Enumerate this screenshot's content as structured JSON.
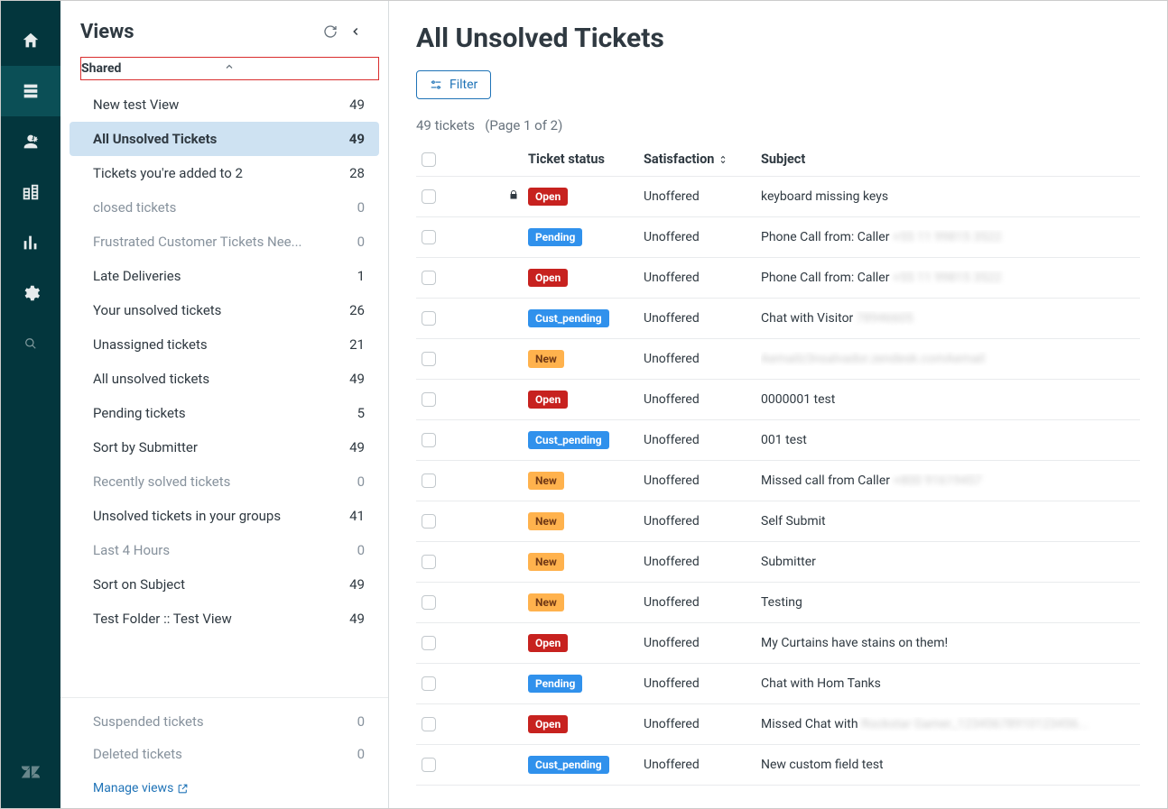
{
  "navrail": {
    "items": [
      {
        "name": "home",
        "active": false
      },
      {
        "name": "views",
        "active": true
      },
      {
        "name": "customers",
        "active": false
      },
      {
        "name": "organizations",
        "active": false
      },
      {
        "name": "reporting",
        "active": false
      },
      {
        "name": "admin",
        "active": false
      },
      {
        "name": "search",
        "active": false
      }
    ]
  },
  "sidebar": {
    "title": "Views",
    "section_label": "Shared",
    "views": [
      {
        "label": "New test View",
        "count": "49",
        "active": false,
        "muted": false
      },
      {
        "label": "All Unsolved Tickets",
        "count": "49",
        "active": true,
        "muted": false
      },
      {
        "label": "Tickets you're added to 2",
        "count": "28",
        "active": false,
        "muted": false
      },
      {
        "label": "closed tickets",
        "count": "0",
        "active": false,
        "muted": true
      },
      {
        "label": "Frustrated Customer Tickets Nee...",
        "count": "0",
        "active": false,
        "muted": true
      },
      {
        "label": "Late Deliveries",
        "count": "1",
        "active": false,
        "muted": false
      },
      {
        "label": "Your unsolved tickets",
        "count": "26",
        "active": false,
        "muted": false
      },
      {
        "label": "Unassigned tickets",
        "count": "21",
        "active": false,
        "muted": false
      },
      {
        "label": "All unsolved tickets",
        "count": "49",
        "active": false,
        "muted": false
      },
      {
        "label": "Pending tickets",
        "count": "5",
        "active": false,
        "muted": false
      },
      {
        "label": "Sort by Submitter",
        "count": "49",
        "active": false,
        "muted": false
      },
      {
        "label": "Recently solved tickets",
        "count": "0",
        "active": false,
        "muted": true
      },
      {
        "label": "Unsolved tickets in your groups",
        "count": "41",
        "active": false,
        "muted": false
      },
      {
        "label": "Last 4 Hours",
        "count": "0",
        "active": false,
        "muted": true
      },
      {
        "label": "Sort on Subject",
        "count": "49",
        "active": false,
        "muted": false
      },
      {
        "label": "Test Folder :: Test View",
        "count": "49",
        "active": false,
        "muted": false
      }
    ],
    "footer_views": [
      {
        "label": "Suspended tickets",
        "count": "0",
        "muted": true
      },
      {
        "label": "Deleted tickets",
        "count": "0",
        "muted": true
      }
    ],
    "manage_label": "Manage views"
  },
  "main": {
    "title": "All Unsolved Tickets",
    "filter_label": "Filter",
    "results_count": "49 tickets",
    "results_page": "(Page 1 of 2)",
    "columns": {
      "status": "Ticket status",
      "satisfaction": "Satisfaction",
      "subject": "Subject"
    },
    "rows": [
      {
        "locked": true,
        "status": "Open",
        "status_class": "open",
        "satisfaction": "Unoffered",
        "subject": "keyboard missing keys",
        "blurred": ""
      },
      {
        "locked": false,
        "status": "Pending",
        "status_class": "pending",
        "satisfaction": "Unoffered",
        "subject": "Phone Call from: Caller ",
        "blurred": "+55 11 99815 3522"
      },
      {
        "locked": false,
        "status": "Open",
        "status_class": "open",
        "satisfaction": "Unoffered",
        "subject": "Phone Call from: Caller ",
        "blurred": "+55 11 99815 3522"
      },
      {
        "locked": false,
        "status": "Cust_pending",
        "status_class": "cust_pending",
        "satisfaction": "Unoffered",
        "subject": "Chat with Visitor ",
        "blurred": "78946605"
      },
      {
        "locked": false,
        "status": "New",
        "status_class": "new",
        "satisfaction": "Unoffered",
        "subject": "",
        "blurred": "Aemailz3nsalvador.zendesk.comAemail"
      },
      {
        "locked": false,
        "status": "Open",
        "status_class": "open",
        "satisfaction": "Unoffered",
        "subject": "0000001 test",
        "blurred": ""
      },
      {
        "locked": false,
        "status": "Cust_pending",
        "status_class": "cust_pending",
        "satisfaction": "Unoffered",
        "subject": "001 test",
        "blurred": ""
      },
      {
        "locked": false,
        "status": "New",
        "status_class": "new",
        "satisfaction": "Unoffered",
        "subject": "Missed call from Caller ",
        "blurred": "+800 91619457"
      },
      {
        "locked": false,
        "status": "New",
        "status_class": "new",
        "satisfaction": "Unoffered",
        "subject": "Self Submit",
        "blurred": ""
      },
      {
        "locked": false,
        "status": "New",
        "status_class": "new",
        "satisfaction": "Unoffered",
        "subject": "Submitter",
        "blurred": ""
      },
      {
        "locked": false,
        "status": "New",
        "status_class": "new",
        "satisfaction": "Unoffered",
        "subject": "Testing",
        "blurred": ""
      },
      {
        "locked": false,
        "status": "Open",
        "status_class": "open",
        "satisfaction": "Unoffered",
        "subject": "My Curtains have stains on them!",
        "blurred": ""
      },
      {
        "locked": false,
        "status": "Pending",
        "status_class": "pending",
        "satisfaction": "Unoffered",
        "subject": "Chat with Hom Tanks",
        "blurred": ""
      },
      {
        "locked": false,
        "status": "Open",
        "status_class": "open",
        "satisfaction": "Unoffered",
        "subject": "Missed Chat with ",
        "blurred": "Rockstar Gamer_12345678910123456..."
      },
      {
        "locked": false,
        "status": "Cust_pending",
        "status_class": "cust_pending",
        "satisfaction": "Unoffered",
        "subject": "New custom field test",
        "blurred": ""
      }
    ]
  },
  "colors": {
    "navrail_bg": "#03363d",
    "navrail_active": "#0c5259",
    "active_view_bg": "#cee2f2",
    "link": "#1f73b7",
    "badge_open": "#c7221f",
    "badge_pending": "#3091ec",
    "badge_new": "#ffb24d",
    "border": "#e9ebed"
  }
}
